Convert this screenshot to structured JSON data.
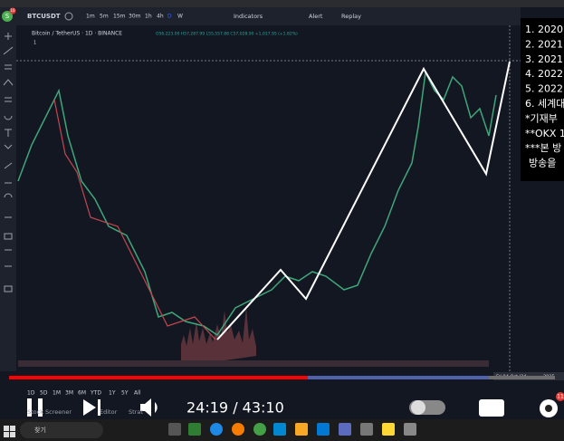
{
  "toolbar": {
    "avatar_badge": "10",
    "symbol": "BTCUSDT",
    "intervals": [
      "1m",
      "5m",
      "15m",
      "30m",
      "1h",
      "4h",
      "D",
      "W"
    ],
    "indicators": "Indicators",
    "alert": "Alert",
    "replay": "Replay"
  },
  "chart": {
    "legend": "Bitcoin / TetherUS · 1D · BINANCE",
    "ohlc": "O56,223.00 H57,287.99 L55,557.88 C57,028.90 +1,017.95 (+1.82%)",
    "count": "1",
    "date_label": "Fri 04 Oct '24",
    "year_label": "2025",
    "ranges": [
      "1D",
      "5D",
      "1M",
      "3M",
      "6M",
      "YTD",
      "1Y",
      "5Y",
      "All"
    ]
  },
  "bottom_tabs": [
    "Stock Screener",
    "Editor",
    "Strat"
  ],
  "notes": [
    "1. 2020",
    "2. 2021",
    "3. 2021",
    "4. 2022",
    "5. 2022",
    "6. 세계대",
    "*기재부",
    "**OKX 1",
    "***본 방",
    "방송을"
  ],
  "player": {
    "time": "24:19 / 43:10",
    "settings_badge": "11"
  },
  "taskbar": {
    "search": "찾기"
  }
}
